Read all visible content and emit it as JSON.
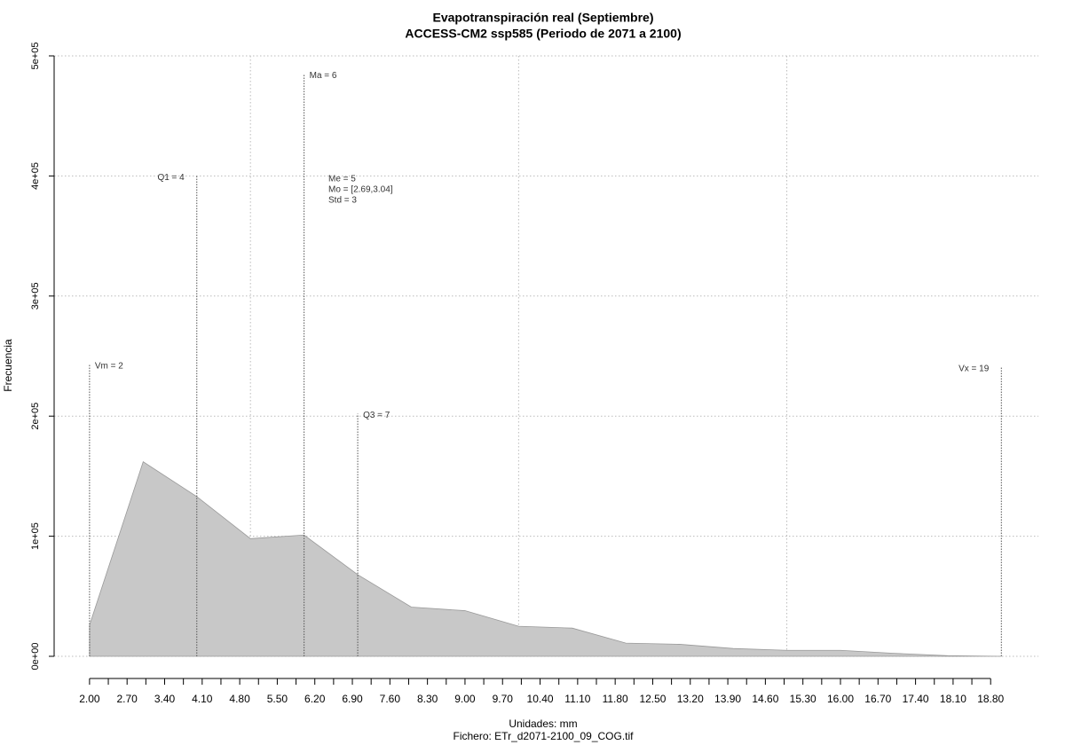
{
  "chart_data": {
    "type": "area",
    "title": "Evapotranspiración real (Septiembre)",
    "subtitle": "ACCESS-CM2 ssp585 (Periodo de 2071 a 2100)",
    "xlabel": "Unidades: mm",
    "ylabel": "Frecuencia",
    "footer": "Fichero: ETr_d2071-2100_09_COG.tif",
    "color": "#c8c8c8",
    "x": [
      2,
      3,
      4,
      5,
      6,
      7,
      8,
      9,
      10,
      11,
      12,
      13,
      14,
      15,
      16,
      17,
      18,
      19
    ],
    "values": [
      26000,
      162000,
      133000,
      98000,
      101000,
      68000,
      41000,
      38000,
      25000,
      23500,
      11000,
      10000,
      6500,
      5000,
      5000,
      2500,
      500,
      0
    ],
    "xlim": [
      1.34,
      19.69
    ],
    "ylim": [
      0,
      500000
    ],
    "xticks": [
      {
        "value": 2,
        "label": "2.00"
      },
      {
        "value": 2.7,
        "label": "2.70"
      },
      {
        "value": 3.4,
        "label": "3.40"
      },
      {
        "value": 4.1,
        "label": "4.10"
      },
      {
        "value": 4.8,
        "label": "4.80"
      },
      {
        "value": 5.5,
        "label": "5.50"
      },
      {
        "value": 6.2,
        "label": "6.20"
      },
      {
        "value": 6.9,
        "label": "6.90"
      },
      {
        "value": 7.6,
        "label": "7.60"
      },
      {
        "value": 8.3,
        "label": "8.30"
      },
      {
        "value": 9,
        "label": "9.00"
      },
      {
        "value": 9.7,
        "label": "9.70"
      },
      {
        "value": 10.4,
        "label": "10.40"
      },
      {
        "value": 11.1,
        "label": "11.10"
      },
      {
        "value": 11.8,
        "label": "11.80"
      },
      {
        "value": 12.5,
        "label": "12.50"
      },
      {
        "value": 13.2,
        "label": "13.20"
      },
      {
        "value": 13.9,
        "label": "13.90"
      },
      {
        "value": 14.6,
        "label": "14.60"
      },
      {
        "value": 15.3,
        "label": "15.30"
      },
      {
        "value": 16,
        "label": "16.00"
      },
      {
        "value": 16.7,
        "label": "16.70"
      },
      {
        "value": 17.4,
        "label": "17.40"
      },
      {
        "value": 18.1,
        "label": "18.10"
      },
      {
        "value": 18.8,
        "label": "18.80"
      }
    ],
    "xminorticks": [
      2.35,
      3.05,
      3.75,
      4.45,
      5.15,
      5.85,
      6.55,
      7.25,
      7.95,
      8.65,
      9.35,
      10.05,
      10.75,
      11.45,
      12.15,
      12.85,
      13.55,
      14.25,
      14.95,
      15.65,
      16.35,
      17.05,
      17.75,
      18.45
    ],
    "xgrid": [
      5,
      10,
      15
    ],
    "yticks": [
      {
        "value": 0,
        "label": "0e+00"
      },
      {
        "value": 100000,
        "label": "1e+05"
      },
      {
        "value": 200000,
        "label": "2e+05"
      },
      {
        "value": 300000,
        "label": "3e+05"
      },
      {
        "value": 400000,
        "label": "4e+05"
      },
      {
        "value": 500000,
        "label": "5e+05"
      }
    ],
    "grid": true,
    "reference_lines": [
      {
        "label": "Vm = 2",
        "x": 2,
        "height": 243000
      },
      {
        "label": "Q1 = 4",
        "x": 4,
        "height": 400000
      },
      {
        "label": "Ma = 6",
        "x": 6,
        "height": 485000
      },
      {
        "label": "Q3 = 7",
        "x": 7,
        "height": 202000
      },
      {
        "label": "Vx = 19",
        "x": 19,
        "height": 241000
      }
    ],
    "stats": [
      "Me = 5",
      "Mo = [2.69,3.04]",
      "Std = 3"
    ]
  }
}
